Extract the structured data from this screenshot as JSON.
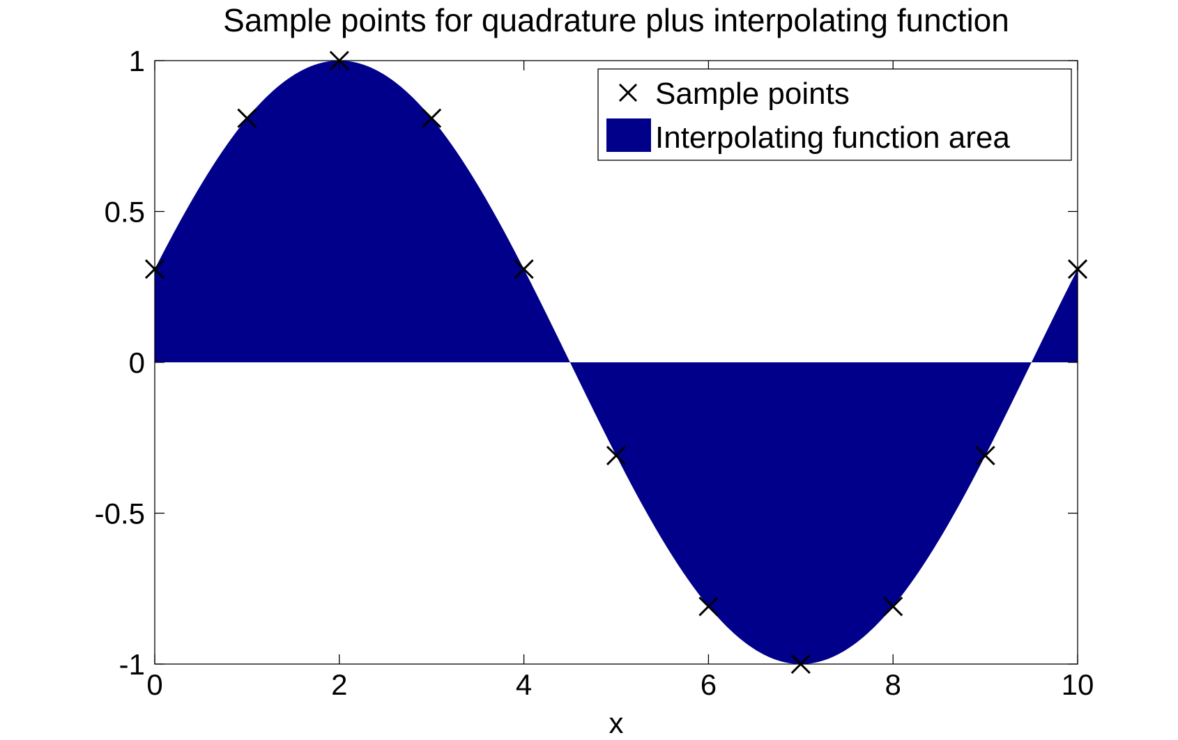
{
  "chart_data": {
    "type": "area",
    "title": "Sample points for quadrature plus interpolating function",
    "xlabel": "x",
    "ylabel": "",
    "xlim": [
      0,
      10
    ],
    "ylim": [
      -1,
      1
    ],
    "xticks": [
      0,
      2,
      4,
      6,
      8,
      10
    ],
    "xtick_labels": [
      "0",
      "2",
      "4",
      "6",
      "8",
      "10"
    ],
    "yticks": [
      -1,
      -0.5,
      0,
      0.5,
      1
    ],
    "ytick_labels": [
      "-1",
      "-0.5",
      "0",
      "0.5",
      "1"
    ],
    "grid": false,
    "legend_position": "top-right",
    "series": [
      {
        "name": "Sample points",
        "kind": "scatter",
        "marker": "x",
        "color": "#000000",
        "x": [
          0,
          1,
          2,
          3,
          4,
          5,
          6,
          7,
          8,
          9,
          10
        ],
        "y": [
          0.309,
          0.809,
          1.0,
          0.809,
          0.309,
          -0.309,
          -0.809,
          -1.0,
          -0.809,
          -0.309,
          0.309
        ]
      },
      {
        "name": "Interpolating function area",
        "kind": "area",
        "color": "#00008b",
        "baseline": 0,
        "function": "sin(2*pi*(x+0.5)/10)"
      }
    ]
  }
}
